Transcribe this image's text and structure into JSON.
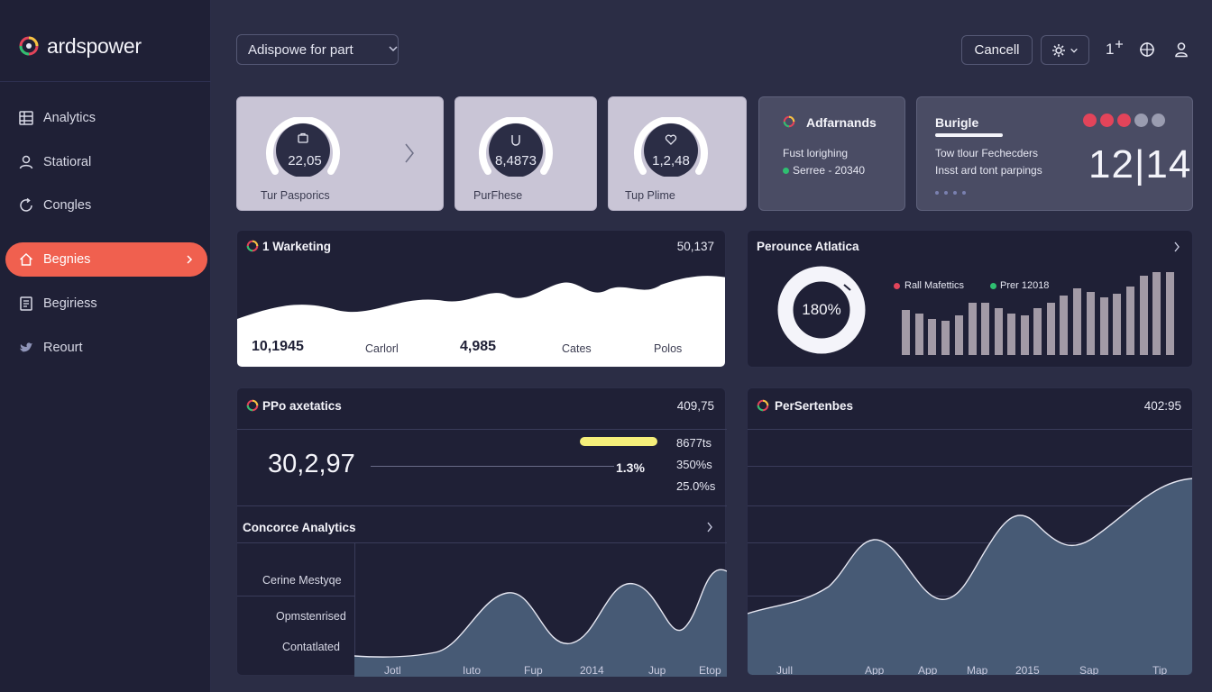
{
  "brand": {
    "name": "ardspower"
  },
  "sidebar": {
    "items": [
      {
        "label": "Analytics",
        "icon": "grid-icon"
      },
      {
        "label": "Statioral",
        "icon": "user-icon"
      },
      {
        "label": "Congles",
        "icon": "refresh-icon"
      },
      {
        "label": "Begnies",
        "icon": "home-icon",
        "active": true
      },
      {
        "label": "Begiriess",
        "icon": "document-icon"
      },
      {
        "label": "Reourt",
        "icon": "bird-icon"
      }
    ]
  },
  "topbar": {
    "select_value": "Adispowe for part",
    "cancel_label": "Cancell",
    "fav_label": "1"
  },
  "stat_cards": [
    {
      "value": "22,05",
      "label": "Tur Pasporics",
      "icon": "bag-icon"
    },
    {
      "value": "8,4873",
      "label": "PurFhese",
      "icon": "cup-icon"
    },
    {
      "value": "1,2,48",
      "label": "Tup Plime",
      "icon": "heart-icon"
    }
  ],
  "adfarnands": {
    "title": "Adfarnands",
    "line1": "Fust lorighing",
    "line2": "Serree - 20340"
  },
  "burigle": {
    "title": "Burigle",
    "line1": "Tow tlour Fechecders",
    "line2": "Insst ard tont parpings",
    "big_number": "12|14"
  },
  "marketing": {
    "title": "1 Warketing",
    "value": "50,137",
    "stats": [
      {
        "value": "10,1945",
        "label": "Carlorl"
      },
      {
        "value": "4,985",
        "label": "Cates"
      },
      {
        "value": "",
        "label": "Polos"
      }
    ]
  },
  "perounce": {
    "title": "Perounce Atlatica",
    "donut_value": "180%",
    "legend": [
      {
        "label": "Rall Mafettics",
        "color": "#e2445a"
      },
      {
        "label": "Prer 12018",
        "color": "#2fbf71"
      }
    ]
  },
  "ppo": {
    "title": "PPo axetatics",
    "value": "409,75",
    "big_number": "30,2,97",
    "percent": "1.3%",
    "side_values": [
      "8677ts",
      "350%s",
      "25.0%s"
    ]
  },
  "concorce": {
    "title": "Concorce Analytics",
    "row_labels": [
      "Cerine Mestyqe",
      "Opmstenrised",
      "Contatlated"
    ],
    "x_labels": [
      "Jotl",
      "Iuto",
      "Fup",
      "2014",
      "Jup",
      "Etop"
    ]
  },
  "persertenbes": {
    "title": "PerSertenbes",
    "value": "402:95",
    "x_labels": [
      "Jull",
      "App",
      "App",
      "Map",
      "2015",
      "Sap",
      "Tip"
    ]
  },
  "colors": {
    "accent": "#f0604f",
    "sidebar": "#1f2036",
    "background": "#2b2d45",
    "highlight": "#f5ef7a"
  }
}
